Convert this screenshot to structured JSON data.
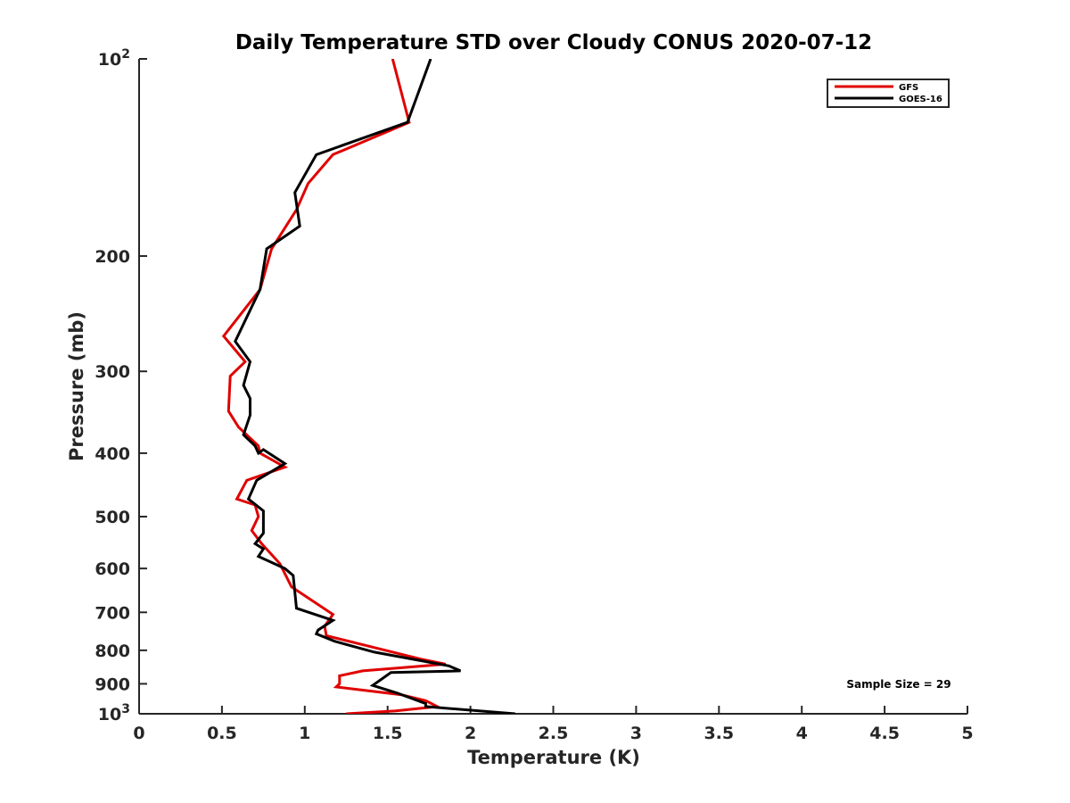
{
  "chart_data": {
    "type": "line",
    "title": "Daily Temperature STD over Cloudy CONUS 2020-07-12",
    "xlabel": "Temperature (K)",
    "ylabel": "Pressure (mb)",
    "xlim": [
      0,
      5
    ],
    "ylim": [
      100,
      1000
    ],
    "y_scale": "log",
    "y_reversed": true,
    "x_ticks": [
      0,
      0.5,
      1,
      1.5,
      2,
      2.5,
      3,
      3.5,
      4,
      4.5,
      5
    ],
    "x_tick_labels": [
      "0",
      "0.5",
      "1",
      "1.5",
      "2",
      "2.5",
      "3",
      "3.5",
      "4",
      "4.5",
      "5"
    ],
    "y_ticks": [
      100,
      200,
      300,
      400,
      500,
      600,
      700,
      800,
      900,
      1000
    ],
    "y_tick_labels": [
      "10²",
      "200",
      "300",
      "400",
      "500",
      "600",
      "700",
      "800",
      "900",
      "10³"
    ],
    "grid": false,
    "legend_position": "top-right",
    "series": [
      {
        "name": "GFS",
        "color": "#e00000",
        "x": [
          1.53,
          1.63,
          1.17,
          1.02,
          0.95,
          0.8,
          0.73,
          0.51,
          0.64,
          0.55,
          0.54,
          0.6,
          0.72,
          0.73,
          0.88,
          0.65,
          0.59,
          0.7,
          0.72,
          0.68,
          0.74,
          0.85,
          0.92,
          1.17,
          1.12,
          1.13,
          1.7,
          1.85,
          1.35,
          1.21,
          1.21,
          1.19,
          1.58,
          1.73,
          1.8,
          1.55,
          1.25
        ],
        "y": [
          100,
          125,
          140,
          155,
          170,
          195,
          225,
          265,
          290,
          305,
          345,
          365,
          390,
          400,
          420,
          440,
          470,
          480,
          500,
          525,
          550,
          590,
          640,
          705,
          735,
          760,
          825,
          840,
          860,
          875,
          900,
          910,
          935,
          955,
          975,
          990,
          1000
        ]
      },
      {
        "name": "GOES-16",
        "color": "#000000",
        "x": [
          1.76,
          1.62,
          1.07,
          0.94,
          0.97,
          0.77,
          0.73,
          0.58,
          0.67,
          0.63,
          0.67,
          0.67,
          0.63,
          0.7,
          0.72,
          0.75,
          0.88,
          0.71,
          0.66,
          0.75,
          0.75,
          0.7,
          0.75,
          0.72,
          0.88,
          0.93,
          0.95,
          1.17,
          1.08,
          1.07,
          1.18,
          1.42,
          1.87,
          1.94,
          1.52,
          1.41,
          1.56,
          1.73,
          1.73,
          2.27
        ],
        "y": [
          100,
          125,
          140,
          160,
          180,
          195,
          225,
          270,
          290,
          315,
          330,
          350,
          375,
          390,
          400,
          395,
          415,
          440,
          470,
          490,
          530,
          550,
          560,
          575,
          600,
          615,
          690,
          720,
          745,
          755,
          775,
          805,
          845,
          860,
          865,
          905,
          930,
          965,
          975,
          1000
        ]
      }
    ],
    "annotations": [
      "Sample Size = 29"
    ]
  }
}
